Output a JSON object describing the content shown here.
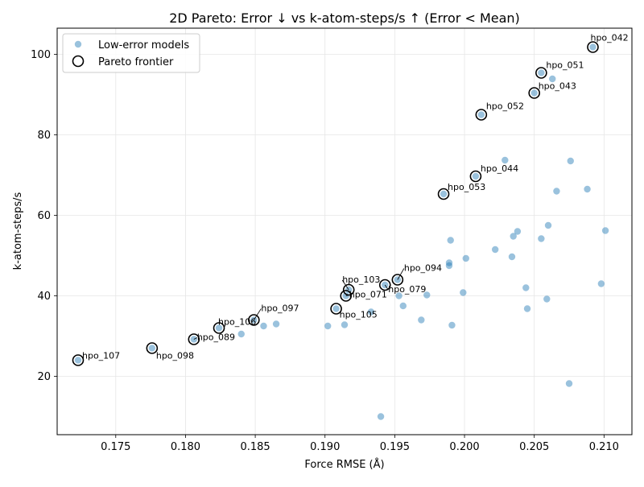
{
  "chart_data": {
    "type": "scatter",
    "title": "2D Pareto: Error ↓ vs k-atom-steps/s ↑ (Error < Mean)",
    "xlabel": "Force RMSE (Å)",
    "ylabel": "k-atom-steps/s",
    "xlim": [
      0.1708,
      0.212
    ],
    "ylim": [
      5.5,
      106.5
    ],
    "xticks": [
      0.175,
      0.18,
      0.185,
      0.19,
      0.195,
      0.2,
      0.205,
      0.21
    ],
    "xtick_labels": [
      "0.175",
      "0.180",
      "0.185",
      "0.190",
      "0.195",
      "0.200",
      "0.205",
      "0.210"
    ],
    "yticks": [
      20,
      40,
      60,
      80,
      100
    ],
    "ytick_labels": [
      "20",
      "40",
      "60",
      "80",
      "100"
    ],
    "grid": true,
    "legend_placement": "top-left",
    "colors": {
      "points": "#1f77b4",
      "frontier_edge": "#000000",
      "grid": "#e6e6e6",
      "axes": "#000000"
    },
    "series": [
      {
        "name": "Low-error models",
        "points": [
          [
            0.1723,
            24.0
          ],
          [
            0.1776,
            27.0
          ],
          [
            0.1806,
            29.2
          ],
          [
            0.1824,
            32.0
          ],
          [
            0.184,
            30.5
          ],
          [
            0.1849,
            34.0
          ],
          [
            0.1856,
            32.5
          ],
          [
            0.1865,
            33.0
          ],
          [
            0.1902,
            32.5
          ],
          [
            0.1908,
            36.8
          ],
          [
            0.1914,
            32.8
          ],
          [
            0.1915,
            40.0
          ],
          [
            0.1917,
            41.5
          ],
          [
            0.1933,
            36.0
          ],
          [
            0.194,
            10.0
          ],
          [
            0.1943,
            42.7
          ],
          [
            0.1952,
            44.0
          ],
          [
            0.1953,
            40.0
          ],
          [
            0.1956,
            37.5
          ],
          [
            0.1969,
            34.0
          ],
          [
            0.1973,
            40.2
          ],
          [
            0.1985,
            65.3
          ],
          [
            0.1989,
            47.5
          ],
          [
            0.1989,
            48.2
          ],
          [
            0.199,
            53.8
          ],
          [
            0.1991,
            32.7
          ],
          [
            0.1999,
            40.8
          ],
          [
            0.2001,
            49.3
          ],
          [
            0.2008,
            69.7
          ],
          [
            0.2012,
            85.0
          ],
          [
            0.2022,
            51.5
          ],
          [
            0.2029,
            73.7
          ],
          [
            0.2034,
            49.7
          ],
          [
            0.2035,
            54.8
          ],
          [
            0.2038,
            56.0
          ],
          [
            0.2044,
            42.0
          ],
          [
            0.2045,
            36.8
          ],
          [
            0.205,
            90.4
          ],
          [
            0.2055,
            54.2
          ],
          [
            0.2055,
            95.4
          ],
          [
            0.2059,
            39.2
          ],
          [
            0.206,
            57.5
          ],
          [
            0.2063,
            93.9
          ],
          [
            0.2066,
            66.0
          ],
          [
            0.2075,
            18.2
          ],
          [
            0.2076,
            73.5
          ],
          [
            0.2088,
            66.5
          ],
          [
            0.2092,
            101.8
          ],
          [
            0.2098,
            43.0
          ],
          [
            0.2101,
            56.2
          ]
        ]
      },
      {
        "name": "Pareto frontier",
        "points": [
          {
            "x": 0.1723,
            "y": 24.0,
            "label": "hpo_107"
          },
          {
            "x": 0.1776,
            "y": 27.0,
            "label": "hpo_098"
          },
          {
            "x": 0.1806,
            "y": 29.2,
            "label": "hpo_089"
          },
          {
            "x": 0.1824,
            "y": 32.0,
            "label": "hpo_106"
          },
          {
            "x": 0.1849,
            "y": 34.0,
            "label": "hpo_097"
          },
          {
            "x": 0.1908,
            "y": 36.8,
            "label": "hpo_105"
          },
          {
            "x": 0.1915,
            "y": 40.0,
            "label": "hpo_071"
          },
          {
            "x": 0.1917,
            "y": 41.5,
            "label": "hpo_103"
          },
          {
            "x": 0.1943,
            "y": 42.7,
            "label": "hpo_079"
          },
          {
            "x": 0.1952,
            "y": 44.0,
            "label": "hpo_094"
          },
          {
            "x": 0.1985,
            "y": 65.3,
            "label": "hpo_053"
          },
          {
            "x": 0.2008,
            "y": 69.7,
            "label": "hpo_044"
          },
          {
            "x": 0.2012,
            "y": 85.0,
            "label": "hpo_052"
          },
          {
            "x": 0.205,
            "y": 90.4,
            "label": "hpo_043"
          },
          {
            "x": 0.2055,
            "y": 95.4,
            "label": "hpo_051"
          },
          {
            "x": 0.2092,
            "y": 101.8,
            "label": "hpo_042"
          }
        ]
      }
    ]
  }
}
